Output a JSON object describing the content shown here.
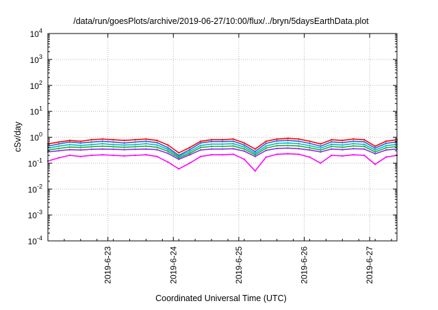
{
  "chart_data": {
    "type": "line",
    "title": "/data/run/goesPlots/archive/2019-06-27/10:00/flux/../bryn/5daysEarthData.plot",
    "xlabel": "Coordinated Universal Time (UTC)",
    "ylabel": "cSv/day",
    "yscale": "log",
    "ylim": [
      0.0001,
      10000
    ],
    "xlim": [
      "2019-06-22T02:00",
      "2019-06-27T10:00"
    ],
    "x_ticks": [
      {
        "date": "2019-06-23T00:00",
        "label": "2019-6-23"
      },
      {
        "date": "2019-06-24T00:00",
        "label": "2019-6-24"
      },
      {
        "date": "2019-06-25T00:00",
        "label": "2019-6-25"
      },
      {
        "date": "2019-06-26T00:00",
        "label": "2019-6-26"
      },
      {
        "date": "2019-06-27T00:00",
        "label": "2019-6-27"
      }
    ],
    "y_ticks": [
      {
        "value": 0.0001,
        "base": "10",
        "exp": "-4"
      },
      {
        "value": 0.001,
        "base": "10",
        "exp": "-3"
      },
      {
        "value": 0.01,
        "base": "10",
        "exp": "-2"
      },
      {
        "value": 0.1,
        "base": "10",
        "exp": "-1"
      },
      {
        "value": 1,
        "base": "10",
        "exp": "0"
      },
      {
        "value": 10,
        "base": "10",
        "exp": "1"
      },
      {
        "value": 100,
        "base": "10",
        "exp": "2"
      },
      {
        "value": 1000,
        "base": "10",
        "exp": "3"
      },
      {
        "value": 10000,
        "base": "10",
        "exp": "4"
      }
    ],
    "grid": true,
    "legend": "none",
    "x": [
      "2019-06-22T02:00",
      "2019-06-22T06:00",
      "2019-06-22T10:00",
      "2019-06-22T14:00",
      "2019-06-22T18:00",
      "2019-06-22T22:00",
      "2019-06-23T02:00",
      "2019-06-23T06:00",
      "2019-06-23T10:00",
      "2019-06-23T14:00",
      "2019-06-23T18:00",
      "2019-06-23T22:00",
      "2019-06-24T02:00",
      "2019-06-24T06:00",
      "2019-06-24T10:00",
      "2019-06-24T14:00",
      "2019-06-24T18:00",
      "2019-06-24T22:00",
      "2019-06-25T02:00",
      "2019-06-25T06:00",
      "2019-06-25T10:00",
      "2019-06-25T14:00",
      "2019-06-25T18:00",
      "2019-06-25T22:00",
      "2019-06-26T02:00",
      "2019-06-26T06:00",
      "2019-06-26T10:00",
      "2019-06-26T14:00",
      "2019-06-26T18:00",
      "2019-06-26T22:00",
      "2019-06-27T02:00",
      "2019-06-27T06:00",
      "2019-06-27T10:00"
    ],
    "series": [
      {
        "color": "#ff0000",
        "values": [
          0.55,
          0.65,
          0.75,
          0.7,
          0.8,
          0.85,
          0.8,
          0.75,
          0.8,
          0.85,
          0.75,
          0.5,
          0.25,
          0.4,
          0.7,
          0.8,
          0.8,
          0.85,
          0.6,
          0.35,
          0.7,
          0.85,
          0.9,
          0.85,
          0.7,
          0.55,
          0.8,
          0.75,
          0.85,
          0.8,
          0.45,
          0.7,
          0.8
        ]
      },
      {
        "color": "#2b5fd9",
        "values": [
          0.45,
          0.55,
          0.65,
          0.6,
          0.65,
          0.7,
          0.65,
          0.6,
          0.65,
          0.7,
          0.62,
          0.4,
          0.2,
          0.33,
          0.6,
          0.68,
          0.68,
          0.7,
          0.5,
          0.28,
          0.58,
          0.72,
          0.75,
          0.7,
          0.58,
          0.45,
          0.66,
          0.62,
          0.7,
          0.66,
          0.38,
          0.58,
          0.66
        ]
      },
      {
        "color": "#00b8c8",
        "values": [
          0.38,
          0.45,
          0.52,
          0.48,
          0.52,
          0.56,
          0.52,
          0.5,
          0.52,
          0.56,
          0.5,
          0.34,
          0.18,
          0.28,
          0.48,
          0.54,
          0.54,
          0.56,
          0.42,
          0.24,
          0.46,
          0.58,
          0.6,
          0.56,
          0.47,
          0.38,
          0.53,
          0.5,
          0.56,
          0.53,
          0.32,
          0.47,
          0.53
        ]
      },
      {
        "color": "#22aa33",
        "values": [
          0.32,
          0.37,
          0.42,
          0.4,
          0.43,
          0.45,
          0.43,
          0.41,
          0.43,
          0.45,
          0.41,
          0.29,
          0.16,
          0.24,
          0.4,
          0.44,
          0.44,
          0.46,
          0.35,
          0.21,
          0.38,
          0.47,
          0.48,
          0.46,
          0.39,
          0.32,
          0.44,
          0.41,
          0.46,
          0.44,
          0.27,
          0.39,
          0.44
        ]
      },
      {
        "color": "#8a2be2",
        "values": [
          0.27,
          0.3,
          0.33,
          0.32,
          0.34,
          0.35,
          0.34,
          0.33,
          0.34,
          0.35,
          0.33,
          0.24,
          0.14,
          0.21,
          0.32,
          0.35,
          0.35,
          0.36,
          0.29,
          0.18,
          0.31,
          0.37,
          0.38,
          0.36,
          0.32,
          0.27,
          0.35,
          0.33,
          0.36,
          0.35,
          0.23,
          0.32,
          0.35
        ]
      },
      {
        "color": "#ff00ff",
        "values": [
          0.12,
          0.16,
          0.2,
          0.18,
          0.2,
          0.21,
          0.2,
          0.19,
          0.2,
          0.21,
          0.18,
          0.11,
          0.06,
          0.1,
          0.18,
          0.21,
          0.21,
          0.22,
          0.14,
          0.05,
          0.17,
          0.22,
          0.23,
          0.22,
          0.17,
          0.1,
          0.2,
          0.19,
          0.21,
          0.2,
          0.09,
          0.17,
          0.2
        ]
      }
    ]
  }
}
